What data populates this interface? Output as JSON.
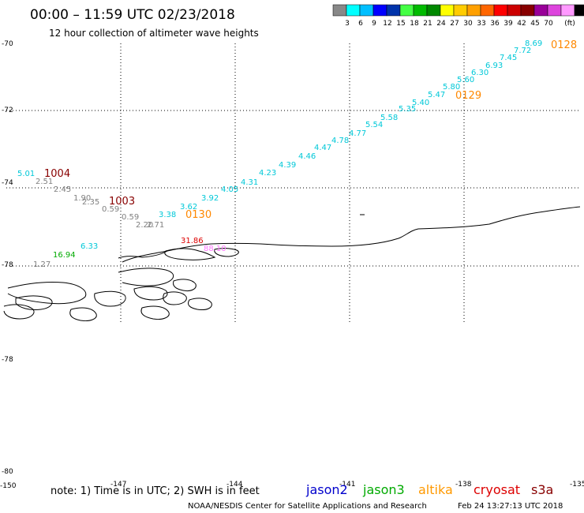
{
  "header": {
    "title": "00:00 – 11:59 UTC 02/23/2018",
    "subtitle": "12 hour collection of altimeter wave heights"
  },
  "colorbar": {
    "colors": [
      "#888888",
      "#00ffff",
      "#00bfff",
      "#0000ff",
      "#0033aa",
      "#44ff44",
      "#00bb00",
      "#008800",
      "#ffff00",
      "#ffcc00",
      "#ffa000",
      "#ff6600",
      "#ff0000",
      "#cc0000",
      "#880000",
      "#990099",
      "#dd44dd",
      "#ff99ff",
      "#000000"
    ],
    "labels": [
      "3",
      "6",
      "9",
      "12",
      "15",
      "18",
      "21",
      "24",
      "27",
      "30",
      "33",
      "36",
      "39",
      "42",
      "45",
      "70"
    ],
    "unit": "(ft)"
  },
  "axes": {
    "y_labels": [
      "-70",
      "-72",
      "-74",
      "-76",
      "-78",
      "-78",
      "-80"
    ],
    "x_labels": [
      "-150",
      "-147",
      "-144",
      "-141",
      "-138",
      "-135"
    ]
  },
  "chart_data": {
    "type": "scatter",
    "title": "00:00 – 11:59 UTC 02/23/2018",
    "subtitle": "12 hour collection of altimeter wave heights",
    "grid": true,
    "series": [
      {
        "name": "jason2",
        "color": "#0000ff",
        "points": []
      },
      {
        "name": "jason3",
        "color": "#00aa00",
        "points": [
          {
            "lon": -149.2,
            "lat": -77.7,
            "swh": 16.94
          }
        ]
      },
      {
        "name": "altika",
        "color": "#ff9900",
        "points": [
          {
            "lon": -146.7,
            "lat": -76.1,
            "swh": 3.38
          },
          {
            "lon": -146.1,
            "lat": -75.8,
            "swh": 3.62
          },
          {
            "lon": -145.5,
            "lat": -75.5,
            "swh": 3.92
          },
          {
            "lon": -144.9,
            "lat": -75.2,
            "swh": 4.05
          },
          {
            "lon": -144.3,
            "lat": -74.9,
            "swh": 4.31
          },
          {
            "lon": -143.7,
            "lat": -74.6,
            "swh": 4.23
          },
          {
            "lon": -143.1,
            "lat": -74.2,
            "swh": 4.39
          },
          {
            "lon": -142.5,
            "lat": -73.9,
            "swh": 4.46
          },
          {
            "lon": -141.9,
            "lat": -73.6,
            "swh": 4.47
          },
          {
            "lon": -141.3,
            "lat": -73.2,
            "swh": 4.78
          },
          {
            "lon": -140.7,
            "lat": -72.9,
            "swh": 4.77
          },
          {
            "lon": -140.1,
            "lat": -72.6,
            "swh": 5.54
          },
          {
            "lon": -139.5,
            "lat": -72.3,
            "swh": 5.58
          },
          {
            "lon": -138.9,
            "lat": -72.0,
            "swh": 5.35
          },
          {
            "lon": -138.3,
            "lat": -71.7,
            "swh": 5.4
          },
          {
            "lon": -137.7,
            "lat": -71.4,
            "swh": 5.47
          },
          {
            "lon": -137.1,
            "lat": -71.1,
            "swh": 5.8
          },
          {
            "lon": -136.5,
            "lat": -70.8,
            "swh": 5.6
          },
          {
            "lon": -135.9,
            "lat": -70.5,
            "swh": 6.3
          },
          {
            "lon": -135.3,
            "lat": -70.2,
            "swh": 6.93
          },
          {
            "lon": -134.7,
            "lat": -69.9,
            "swh": 7.45
          },
          {
            "lon": -134.1,
            "lat": -69.6,
            "swh": 7.72
          },
          {
            "lon": -133.5,
            "lat": -69.3,
            "swh": 8.69
          }
        ]
      },
      {
        "name": "cryosat",
        "color": "#dd0000",
        "points": [
          {
            "lon": -147.2,
            "lat": -77.3,
            "swh": 31.86
          }
        ]
      },
      {
        "name": "s3a",
        "color": "#880000",
        "points": [
          {
            "lon": -149.1,
            "lat": -74.2,
            "swh": 5.01
          },
          {
            "lon": -148.9,
            "lat": -74.5,
            "swh": 2.51
          },
          {
            "lon": -148.6,
            "lat": -74.7,
            "swh": 2.45
          },
          {
            "lon": -148.1,
            "lat": -75.2,
            "swh": 1.9
          },
          {
            "lon": -147.8,
            "lat": -75.3,
            "swh": 2.35
          },
          {
            "lon": -147.5,
            "lat": -75.7,
            "swh": 0.59
          },
          {
            "lon": -147.2,
            "lat": -76.0,
            "swh": 0.59
          },
          {
            "lon": -146.8,
            "lat": -76.2,
            "swh": 2.2
          },
          {
            "lon": -146.5,
            "lat": -76.3,
            "swh": 2.71
          },
          {
            "lon": -149.4,
            "lat": -77.8,
            "swh": 1.27
          },
          {
            "lon": -148.5,
            "lat": -77.4,
            "swh": 6.33
          },
          {
            "lon": -146.0,
            "lat": -77.6,
            "swh": 88.1
          }
        ]
      }
    ],
    "track_times": [
      {
        "label": "0128",
        "color": "#ff8800"
      },
      {
        "label": "0129",
        "color": "#ff8800"
      },
      {
        "label": "0130",
        "color": "#ff8800"
      },
      {
        "label": "1004",
        "color": "#880000"
      },
      {
        "label": "1003",
        "color": "#880000"
      }
    ]
  },
  "footer": {
    "note": "note: 1) Time is in UTC; 2) SWH is in feet",
    "legend": [
      {
        "name": "jason2",
        "color": "#0000cc"
      },
      {
        "name": "jason3",
        "color": "#00aa00"
      },
      {
        "name": "altika",
        "color": "#ff9900"
      },
      {
        "name": "cryosat",
        "color": "#dd0000"
      },
      {
        "name": "s3a",
        "color": "#880000"
      }
    ],
    "credit": "NOAA/NESDIS Center for Satellite Applications and Research",
    "timestamp": "Feb 24 13:27:13 UTC 2018"
  }
}
